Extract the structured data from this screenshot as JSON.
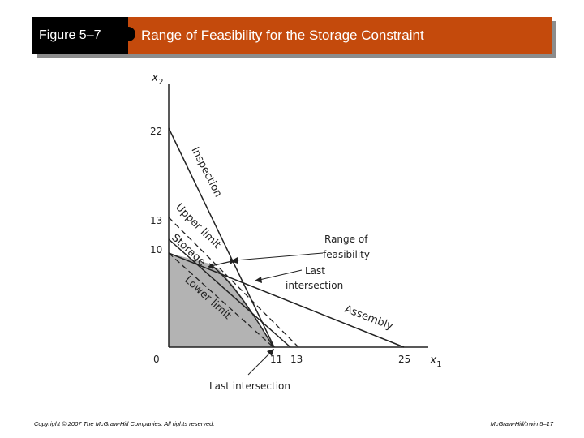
{
  "header": {
    "figure_label": "Figure 5–7",
    "title": "Range of Feasibility for the Storage Constraint"
  },
  "diagram": {
    "axes": {
      "y_label": "x",
      "y_sub": "2",
      "x_label": "x",
      "x_sub": "1",
      "origin": "0",
      "y_ticks": [
        "22",
        "13",
        "10"
      ],
      "x_ticks": [
        "11",
        "13",
        "25"
      ]
    },
    "constraint_labels": {
      "inspection": "Inspection",
      "upper_limit": "Upper limit",
      "storage": "Storage",
      "lower_limit": "Lower limit",
      "assembly": "Assembly"
    },
    "annotations": {
      "range_line1": "Range of",
      "range_line2": "feasibility",
      "last_line1": "Last",
      "last_line2": "intersection",
      "last_intersection_bottom": "Last intersection"
    },
    "colors": {
      "feasible_region": "#b3b3b3",
      "lines": "#222222"
    }
  },
  "footer": {
    "copyright": "Copyright © 2007 The McGraw-Hill Companies. All rights reserved.",
    "publisher": "McGraw-Hill/Irwin 5–17"
  }
}
